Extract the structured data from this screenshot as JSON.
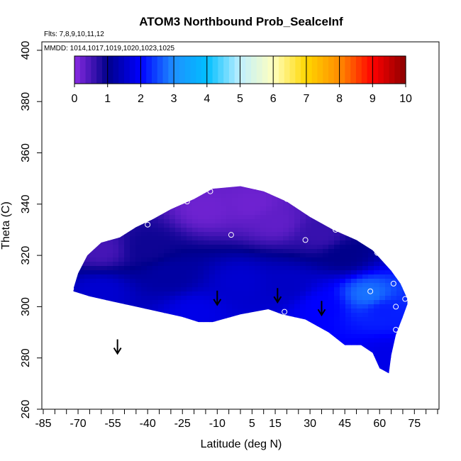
{
  "chart_data": {
    "type": "heatmap",
    "title": "ATOM3 Northbound Prob_SealceInf",
    "flights_label": "Flts: 7,8,9,10,11,12",
    "mmdd_label": "MMDD: 1014,1017,1019,1020,1023,1025",
    "xlabel": "Latitude (deg N)",
    "ylabel": "Theta (C)",
    "xlim": [
      -85,
      85
    ],
    "ylim": [
      260,
      405
    ],
    "x_ticks_labeled": [
      -85,
      -70,
      -55,
      -40,
      -25,
      -10,
      5,
      15,
      30,
      45,
      60,
      75
    ],
    "x_ticks_minor": [
      -80,
      -75,
      -65,
      -60,
      -50,
      -45,
      -35,
      -30,
      -20,
      -15,
      -5,
      0,
      10,
      20,
      25,
      35,
      40,
      50,
      55,
      65,
      70,
      80,
      85
    ],
    "y_ticks": [
      260,
      280,
      300,
      320,
      340,
      360,
      380,
      400
    ],
    "colorbar": {
      "min": 0,
      "max": 10,
      "tick_labels": [
        "0",
        "1",
        "2",
        "3",
        "4",
        "5",
        "6",
        "7",
        "8",
        "9",
        "10"
      ],
      "colors": [
        "#8a2be2",
        "#00008b",
        "#0000ff",
        "#1e90ff",
        "#00bfff",
        "#bfefff",
        "#ffffbf",
        "#ffd700",
        "#ff8c00",
        "#ff0000",
        "#8b0000"
      ]
    },
    "region_boundary": {
      "top": [
        [
          -72,
          307
        ],
        [
          -70,
          313
        ],
        [
          -66,
          320
        ],
        [
          -60,
          325
        ],
        [
          -52,
          327
        ],
        [
          -45,
          331
        ],
        [
          -38,
          334
        ],
        [
          -30,
          338
        ],
        [
          -20,
          342
        ],
        [
          -12,
          346
        ],
        [
          0,
          347
        ],
        [
          10,
          345
        ],
        [
          20,
          341
        ],
        [
          30,
          335
        ],
        [
          40,
          330
        ],
        [
          50,
          326
        ],
        [
          57,
          322
        ],
        [
          61,
          318
        ],
        [
          65,
          314
        ],
        [
          69,
          309
        ],
        [
          72,
          303
        ]
      ],
      "bottom": [
        [
          72,
          301
        ],
        [
          70,
          296
        ],
        [
          67,
          289
        ],
        [
          65,
          281
        ],
        [
          64,
          274
        ],
        [
          60,
          276
        ],
        [
          57,
          282
        ],
        [
          52,
          285
        ],
        [
          45,
          285
        ],
        [
          38,
          290
        ],
        [
          28,
          295
        ],
        [
          18,
          297
        ],
        [
          12,
          299
        ],
        [
          0,
          297
        ],
        [
          -12,
          294
        ],
        [
          -18,
          294
        ],
        [
          -25,
          296
        ],
        [
          -35,
          298
        ],
        [
          -45,
          300
        ],
        [
          -55,
          302
        ],
        [
          -65,
          304
        ],
        [
          -72,
          306
        ]
      ]
    },
    "field_samples": [
      {
        "lat": -60,
        "theta": 322,
        "value": 0.5
      },
      {
        "lat": -40,
        "theta": 323,
        "value": 0.9
      },
      {
        "lat": -15,
        "theta": 338,
        "value": 0.2
      },
      {
        "lat": 5,
        "theta": 340,
        "value": 0.2
      },
      {
        "lat": 15,
        "theta": 333,
        "value": 0.3
      },
      {
        "lat": 35,
        "theta": 328,
        "value": 0.6
      },
      {
        "lat": 45,
        "theta": 320,
        "value": 1.0
      },
      {
        "lat": -30,
        "theta": 312,
        "value": 1.2
      },
      {
        "lat": 0,
        "theta": 310,
        "value": 1.6
      },
      {
        "lat": 20,
        "theta": 308,
        "value": 1.5
      },
      {
        "lat": 35,
        "theta": 300,
        "value": 2.0
      },
      {
        "lat": 55,
        "theta": 305,
        "value": 2.8
      },
      {
        "lat": 62,
        "theta": 298,
        "value": 2.2
      },
      {
        "lat": 65,
        "theta": 280,
        "value": 1.8
      },
      {
        "lat": -60,
        "theta": 306,
        "value": 1.6
      },
      {
        "lat": -20,
        "theta": 298,
        "value": 1.8
      }
    ],
    "sample_circles": [
      {
        "lat": -66,
        "theta": 325
      },
      {
        "lat": -40,
        "theta": 332
      },
      {
        "lat": -23,
        "theta": 341
      },
      {
        "lat": -13,
        "theta": 345
      },
      {
        "lat": -4,
        "theta": 328
      },
      {
        "lat": 20,
        "theta": 342
      },
      {
        "lat": 28,
        "theta": 326
      },
      {
        "lat": 41,
        "theta": 330
      },
      {
        "lat": 59,
        "theta": 321
      },
      {
        "lat": 56,
        "theta": 306
      },
      {
        "lat": 66,
        "theta": 309
      },
      {
        "lat": 67,
        "theta": 300
      },
      {
        "lat": 67,
        "theta": 291
      },
      {
        "lat": 71,
        "theta": 303
      },
      {
        "lat": -73,
        "theta": 307
      },
      {
        "lat": 19,
        "theta": 298
      }
    ],
    "arrows": [
      {
        "lat": -53,
        "theta": 282
      },
      {
        "lat": -10,
        "theta": 301
      },
      {
        "lat": 16,
        "theta": 302
      },
      {
        "lat": 35,
        "theta": 297
      }
    ]
  }
}
